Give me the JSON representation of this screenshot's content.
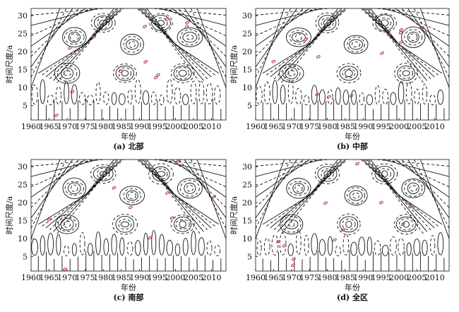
{
  "chart_data": [
    {
      "type": "contour",
      "caption": "(a) 北部",
      "xlabel": "年份",
      "ylabel": "时间尺度/a",
      "xlim": [
        1960,
        2014
      ],
      "ylim": [
        1,
        32
      ],
      "x_ticks": [
        "1960",
        "1965",
        "1970",
        "1975",
        "1980",
        "1985",
        "1990",
        "1995",
        "2000",
        "2005",
        "2010"
      ],
      "y_ticks": [
        "5",
        "10",
        "15",
        "20",
        "25",
        "30"
      ],
      "grid": false
    },
    {
      "type": "contour",
      "caption": "(b) 中部",
      "xlabel": "年份",
      "ylabel": "时间尺度/a",
      "xlim": [
        1960,
        2014
      ],
      "ylim": [
        1,
        32
      ],
      "x_ticks": [
        "1960",
        "1965",
        "1970",
        "1975",
        "1980",
        "1985",
        "1990",
        "1995",
        "2000",
        "2005",
        "2010"
      ],
      "y_ticks": [
        "5",
        "10",
        "15",
        "20",
        "25",
        "30"
      ],
      "grid": false
    },
    {
      "type": "contour",
      "caption": "(c) 南部",
      "xlabel": "年份",
      "ylabel": "时间尺度/a",
      "xlim": [
        1960,
        2014
      ],
      "ylim": [
        1,
        32
      ],
      "x_ticks": [
        "1960",
        "1965",
        "1970",
        "1975",
        "1980",
        "1985",
        "1990",
        "1995",
        "2000",
        "2005",
        "2010"
      ],
      "y_ticks": [
        "5",
        "10",
        "15",
        "20",
        "25",
        "30"
      ],
      "grid": false
    },
    {
      "type": "contour",
      "caption": "(d) 全区",
      "xlabel": "年份",
      "ylabel": "时间尺度/a",
      "xlim": [
        1960,
        2014
      ],
      "ylim": [
        1,
        32
      ],
      "x_ticks": [
        "1960",
        "1965",
        "1970",
        "1975",
        "1980",
        "1985",
        "1990",
        "1995",
        "2000",
        "2005",
        "2010"
      ],
      "y_ticks": [
        "5",
        "10",
        "15",
        "20",
        "25",
        "30"
      ],
      "grid": false
    }
  ]
}
